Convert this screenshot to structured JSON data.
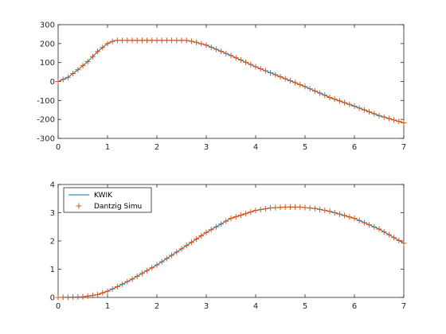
{
  "colors": {
    "line": "#0072BD",
    "marker": "#D95319",
    "axis": "#262626"
  },
  "chart_data": [
    {
      "type": "line",
      "title": "",
      "xlabel": "",
      "ylabel": "",
      "xlim": [
        0,
        7
      ],
      "ylim": [
        -300,
        300
      ],
      "xticks": [
        "0",
        "1",
        "2",
        "3",
        "4",
        "5",
        "6",
        "7"
      ],
      "yticks": [
        "-300",
        "-200",
        "-100",
        "0",
        "100",
        "200",
        "300"
      ],
      "grid": false,
      "legend": null,
      "series": [
        {
          "style": "line",
          "x": [
            0,
            0.2,
            0.4,
            0.6,
            0.8,
            1.0,
            1.15,
            1.4,
            1.8,
            2.2,
            2.6,
            2.75,
            3.0,
            3.5,
            4.0,
            4.5,
            5.0,
            5.5,
            6.0,
            6.5,
            7.0
          ],
          "y": [
            0,
            22,
            62,
            105,
            158,
            200,
            217,
            217,
            217,
            217,
            217,
            210,
            192,
            137,
            78,
            25,
            -27,
            -84,
            -130,
            -180,
            -218
          ]
        },
        {
          "style": "marker",
          "x": [
            0,
            0.2,
            0.4,
            0.6,
            0.8,
            1.0,
            1.15,
            1.4,
            1.8,
            2.2,
            2.6,
            2.75,
            3.0,
            3.5,
            4.0,
            4.5,
            5.0,
            5.5,
            6.0,
            6.5,
            7.0
          ],
          "y": [
            0,
            22,
            62,
            105,
            158,
            200,
            217,
            217,
            217,
            217,
            217,
            210,
            192,
            137,
            78,
            25,
            -27,
            -84,
            -130,
            -180,
            -218
          ]
        }
      ]
    },
    {
      "type": "line",
      "title": "",
      "xlabel": "",
      "ylabel": "",
      "xlim": [
        0,
        7
      ],
      "ylim": [
        0,
        4
      ],
      "xticks": [
        "0",
        "1",
        "2",
        "3",
        "4",
        "5",
        "6",
        "7"
      ],
      "yticks": [
        "0",
        "1",
        "2",
        "3",
        "4"
      ],
      "grid": false,
      "legend": "top-left",
      "series": [
        {
          "name": "KWIK",
          "style": "line",
          "x": [
            0,
            0.5,
            0.8,
            1.0,
            1.2,
            1.5,
            2.0,
            2.5,
            3.0,
            3.5,
            4.0,
            4.3,
            4.6,
            4.9,
            5.2,
            5.5,
            6.0,
            6.5,
            7.0
          ],
          "y": [
            0,
            0.02,
            0.1,
            0.22,
            0.38,
            0.65,
            1.15,
            1.72,
            2.3,
            2.8,
            3.08,
            3.17,
            3.2,
            3.2,
            3.15,
            3.05,
            2.8,
            2.42,
            1.92
          ]
        },
        {
          "name": "Dantzig Simu",
          "style": "marker",
          "x": [
            0,
            0.5,
            0.8,
            1.0,
            1.2,
            1.5,
            2.0,
            2.5,
            3.0,
            3.5,
            4.0,
            4.3,
            4.6,
            4.9,
            5.2,
            5.5,
            6.0,
            6.5,
            7.0
          ],
          "y": [
            0,
            0.02,
            0.1,
            0.22,
            0.38,
            0.65,
            1.15,
            1.72,
            2.3,
            2.8,
            3.08,
            3.17,
            3.2,
            3.2,
            3.15,
            3.05,
            2.8,
            2.42,
            1.92
          ]
        }
      ]
    }
  ]
}
